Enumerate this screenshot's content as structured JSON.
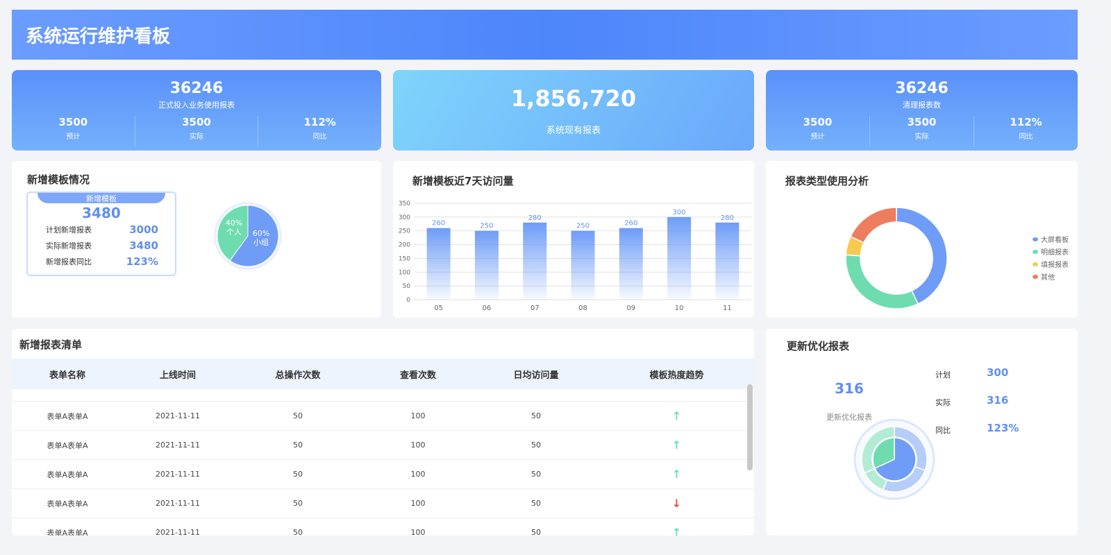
{
  "header": {
    "title": "系统运行维护看板"
  },
  "kpi1": {
    "value": "36246",
    "label": "正式投入业务使用报表",
    "items": [
      {
        "value": "3500",
        "label": "预计"
      },
      {
        "value": "3500",
        "label": "实际"
      },
      {
        "value": "112%",
        "label": "同比"
      }
    ]
  },
  "kpi2": {
    "value": "1,856,720",
    "label": "系统现有报表"
  },
  "kpi3": {
    "value": "36246",
    "label": "清理报表数",
    "items": [
      {
        "value": "3500",
        "label": "预计"
      },
      {
        "value": "3500",
        "label": "实际"
      },
      {
        "value": "112%",
        "label": "同比"
      }
    ]
  },
  "new_template": {
    "title": "新增模板情况",
    "box_title": "新增模板",
    "total": "3480",
    "rows": [
      {
        "label": "计划新增报表",
        "value": "3000"
      },
      {
        "label": "实际新增报表",
        "value": "3480"
      },
      {
        "label": "新增报表同比",
        "value": "123%"
      }
    ],
    "pie": [
      {
        "pct": "40%",
        "label": "个人",
        "value": 40,
        "color": "#6fdcb0"
      },
      {
        "pct": "60%",
        "label": "小组",
        "value": 60,
        "color": "#6e9cf7"
      }
    ]
  },
  "chart_data": [
    {
      "type": "bar",
      "title": "新增模板近7天访问量",
      "categories": [
        "05",
        "06",
        "07",
        "08",
        "09",
        "10",
        "11"
      ],
      "values": [
        260,
        250,
        280,
        250,
        260,
        300,
        280
      ],
      "ylim": [
        0,
        350
      ],
      "yticks": [
        0,
        50,
        100,
        150,
        200,
        250,
        300,
        350
      ],
      "grid": true,
      "color": "#6e9cf7"
    },
    {
      "type": "pie",
      "title": "报表类型使用分析",
      "donut": true,
      "legend_position": "right",
      "slices": [
        {
          "name": "大屏看板",
          "value": 43,
          "color": "#6e9cf7"
        },
        {
          "name": "明细报表",
          "value": 33,
          "color": "#6fdcb0"
        },
        {
          "name": "填报报表",
          "value": 6,
          "color": "#f7c94e"
        },
        {
          "name": "其他",
          "value": 18,
          "color": "#ee7d5f"
        }
      ]
    }
  ],
  "table": {
    "title": "新增报表清单",
    "columns": [
      "表单名称",
      "上线时间",
      "总操作次数",
      "查看次数",
      "日均访问量",
      "模板热度趋势"
    ],
    "rows": [
      {
        "name": "表单A表单A",
        "date": "2021-11-11",
        "ops": "50",
        "views": "100",
        "daily": "50",
        "trend": "up"
      },
      {
        "name": "表单A表单A",
        "date": "2021-11-11",
        "ops": "50",
        "views": "100",
        "daily": "50",
        "trend": "up"
      },
      {
        "name": "表单A表单A",
        "date": "2021-11-11",
        "ops": "50",
        "views": "100",
        "daily": "50",
        "trend": "up"
      },
      {
        "name": "表单A表单A",
        "date": "2021-11-11",
        "ops": "50",
        "views": "100",
        "daily": "50",
        "trend": "down"
      },
      {
        "name": "表单A表单A",
        "date": "2021-11-11",
        "ops": "50",
        "views": "100",
        "daily": "50",
        "trend": "up"
      }
    ]
  },
  "optimize": {
    "title": "更新优化报表",
    "value": "316",
    "label": "更新优化报表",
    "stats": [
      {
        "label": "计划",
        "value": "300"
      },
      {
        "label": "实际",
        "value": "316"
      },
      {
        "label": "同比",
        "value": "123%"
      }
    ]
  },
  "colors": {
    "up": "#6fdcb0",
    "down": "#f04a3a",
    "accent": "#6e9cf7"
  }
}
